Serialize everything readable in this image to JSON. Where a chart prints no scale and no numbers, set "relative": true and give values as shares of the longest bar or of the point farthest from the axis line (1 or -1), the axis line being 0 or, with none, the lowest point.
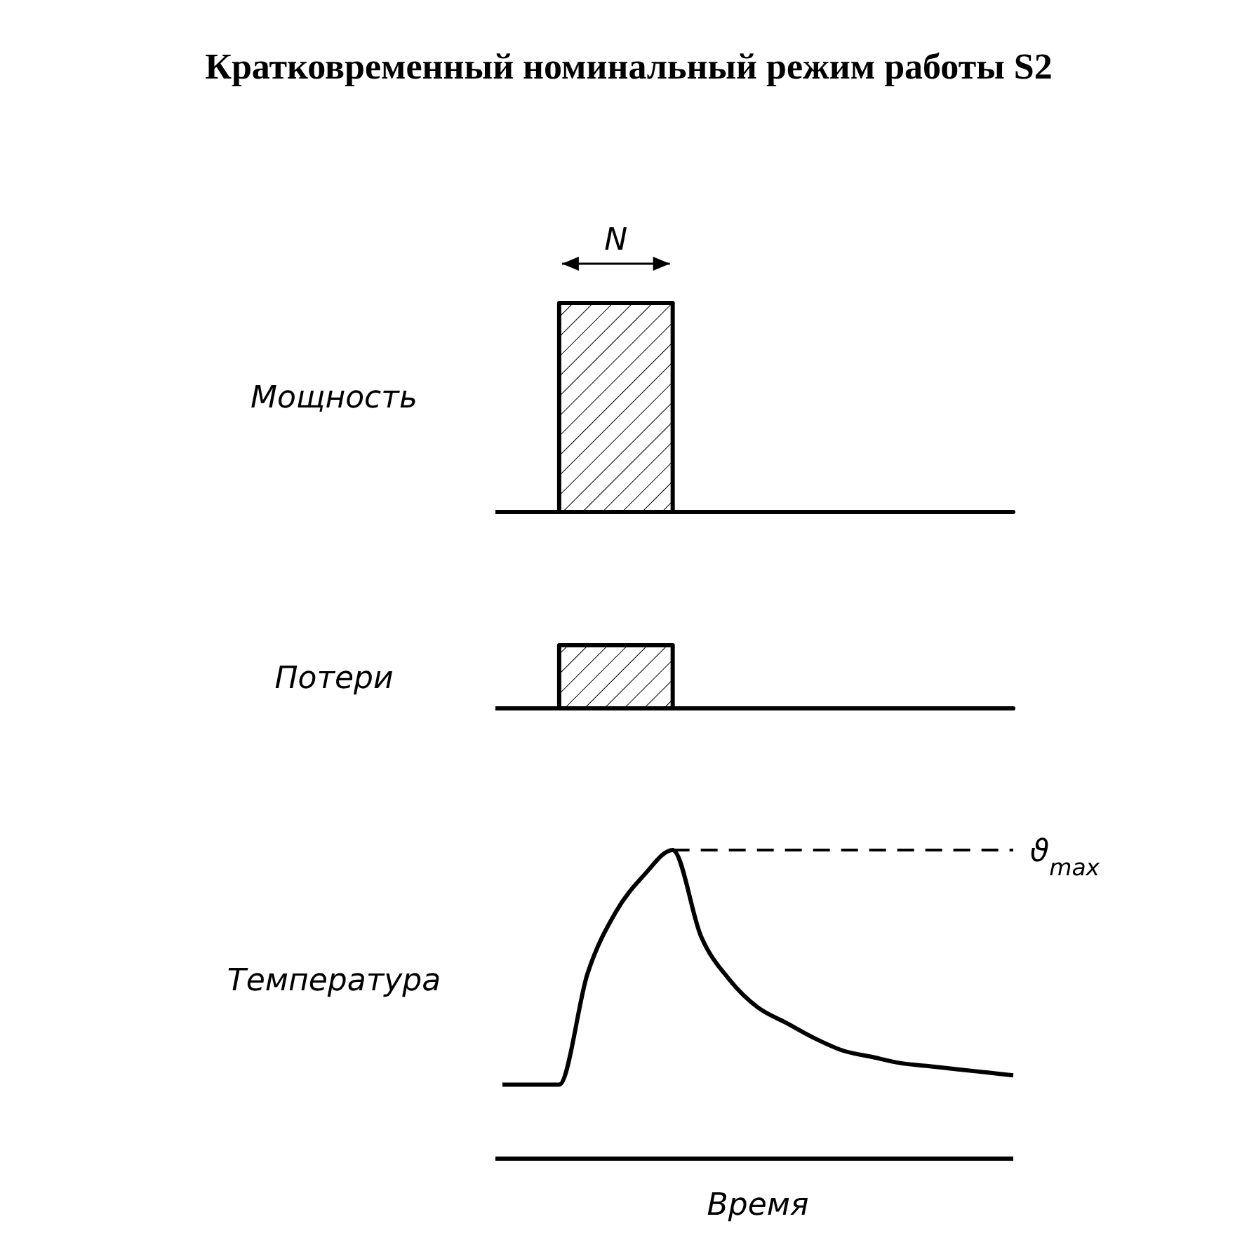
{
  "chart_data": [
    {
      "type": "area",
      "title": "Кратковременный номинальный режим работы S2",
      "ylabel": "Мощность",
      "categories": [
        null,
        null,
        null,
        null,
        null,
        null,
        null,
        null,
        null,
        null,
        null,
        null,
        null,
        null,
        null,
        null,
        null,
        null,
        null
      ],
      "values": [
        0,
        0,
        1,
        1,
        1,
        1,
        0,
        0,
        0,
        0,
        0,
        0,
        0,
        0,
        0,
        0,
        0,
        0,
        0
      ],
      "color": "#000000",
      "relative": true,
      "annotations": [
        "N"
      ]
    },
    {
      "type": "area",
      "ylabel": "Потери",
      "categories": [
        null,
        null,
        null,
        null,
        null,
        null,
        null,
        null,
        null,
        null,
        null,
        null,
        null,
        null,
        null,
        null,
        null,
        null,
        null
      ],
      "values": [
        0,
        0,
        1,
        1,
        1,
        1,
        0,
        0,
        0,
        0,
        0,
        0,
        0,
        0,
        0,
        0,
        0,
        0,
        0
      ],
      "color": "#000000",
      "relative": true
    },
    {
      "type": "line",
      "ylabel": "Температура",
      "xlabel": "Время",
      "categories": [
        null,
        null,
        null,
        null,
        null,
        null,
        null,
        null,
        null,
        null,
        null,
        null,
        null,
        null,
        null,
        null,
        null,
        null,
        null
      ],
      "values": [
        0.24,
        0.24,
        0.24,
        0.6,
        0.8,
        0.92,
        1,
        0.72,
        0.58,
        0.49,
        0.44,
        0.39,
        0.35,
        0.33,
        0.31,
        0.3,
        0.29,
        0.28,
        0.27
      ],
      "color": "#000000",
      "relative": true,
      "ref_lines": [
        {
          "axis": "y",
          "value": 1,
          "label": "ϑ$_{max}$",
          "line_style": "dashed"
        }
      ]
    }
  ]
}
